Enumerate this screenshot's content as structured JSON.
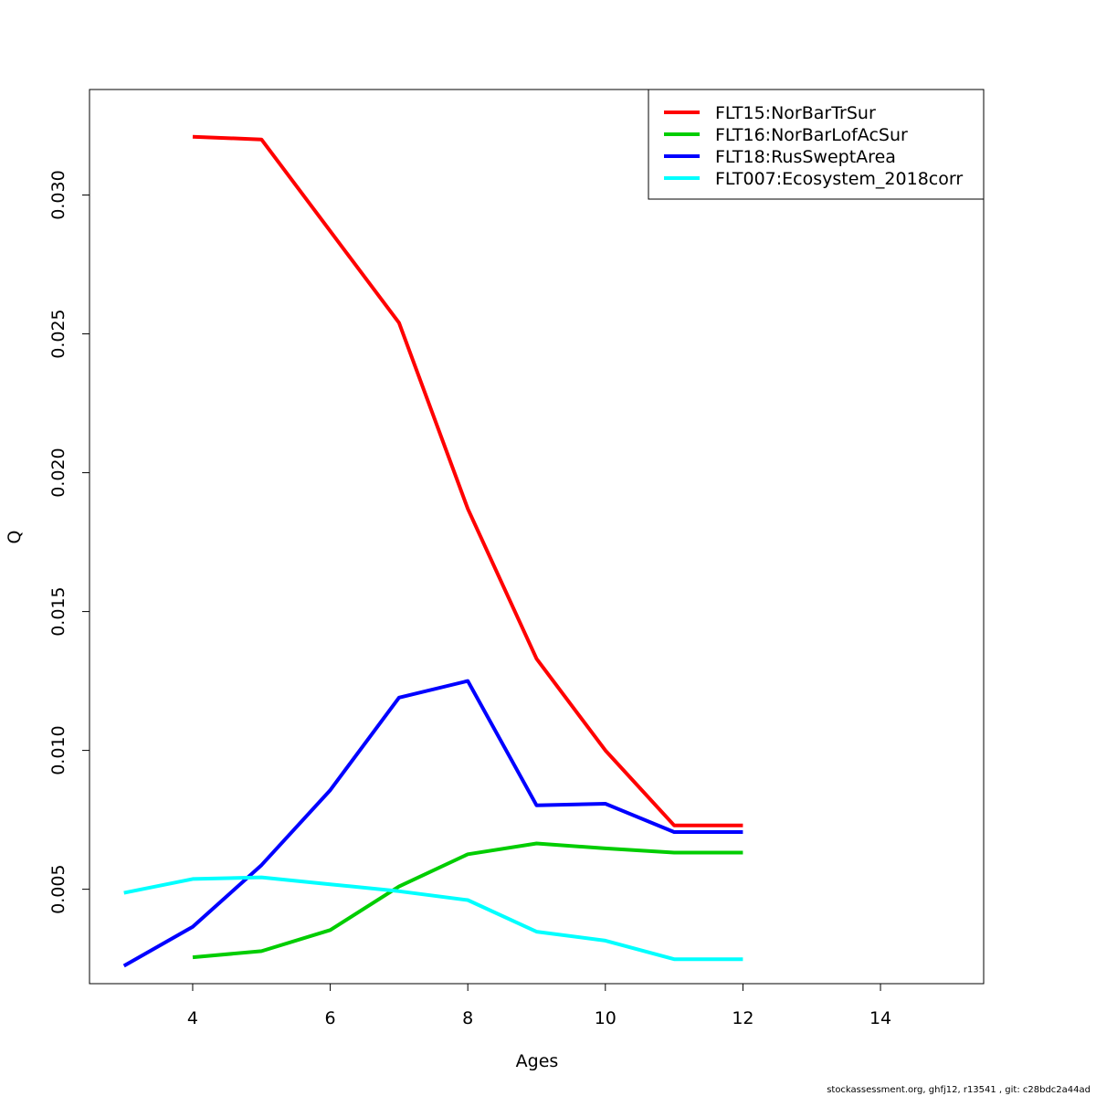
{
  "chart_data": {
    "type": "line",
    "xlabel": "Ages",
    "ylabel": "Q",
    "xlim": [
      2.5,
      15.5
    ],
    "ylim": [
      0.0016,
      0.0338
    ],
    "xticks": [
      4,
      6,
      8,
      10,
      12,
      14
    ],
    "yticks": [
      0.005,
      0.01,
      0.015,
      0.02,
      0.025,
      0.03
    ],
    "ytick_labels": [
      "0.005",
      "0.010",
      "0.015",
      "0.020",
      "0.025",
      "0.030"
    ],
    "legend_position": "top-right",
    "grid": false,
    "series": [
      {
        "name": "FLT15:NorBarTrSur",
        "color": "#ff0000",
        "x": [
          4,
          5,
          6,
          7,
          8,
          9,
          10,
          11,
          12
        ],
        "y": [
          0.0321,
          0.032,
          0.0287,
          0.0254,
          0.0187,
          0.0133,
          0.01,
          0.0073,
          0.0073
        ]
      },
      {
        "name": "FLT16:NorBarLofAcSur",
        "color": "#00cd00",
        "x": [
          4,
          5,
          6,
          7,
          8,
          9,
          10,
          11,
          12
        ],
        "y": [
          0.00255,
          0.00277,
          0.00353,
          0.0051,
          0.00626,
          0.00665,
          0.00647,
          0.00632,
          0.00632
        ]
      },
      {
        "name": "FLT18:RusSweptArea",
        "color": "#0000ff",
        "x": [
          3,
          4,
          5,
          6,
          7,
          8,
          9,
          10,
          11,
          12
        ],
        "y": [
          0.00224,
          0.00365,
          0.00587,
          0.00857,
          0.0119,
          0.0125,
          0.00802,
          0.00808,
          0.00706,
          0.00706
        ]
      },
      {
        "name": "FLT007:Ecosystem_2018corr",
        "color": "#00ffff",
        "x": [
          3,
          4,
          5,
          6,
          7,
          8,
          9,
          10,
          11,
          12
        ],
        "y": [
          0.00487,
          0.00537,
          0.00543,
          0.00518,
          0.00493,
          0.00461,
          0.00347,
          0.00315,
          0.00248,
          0.00248
        ]
      }
    ]
  },
  "footer_text": "stockassessment.org, ghfj12, r13541 , git: c28bdc2a44ad"
}
